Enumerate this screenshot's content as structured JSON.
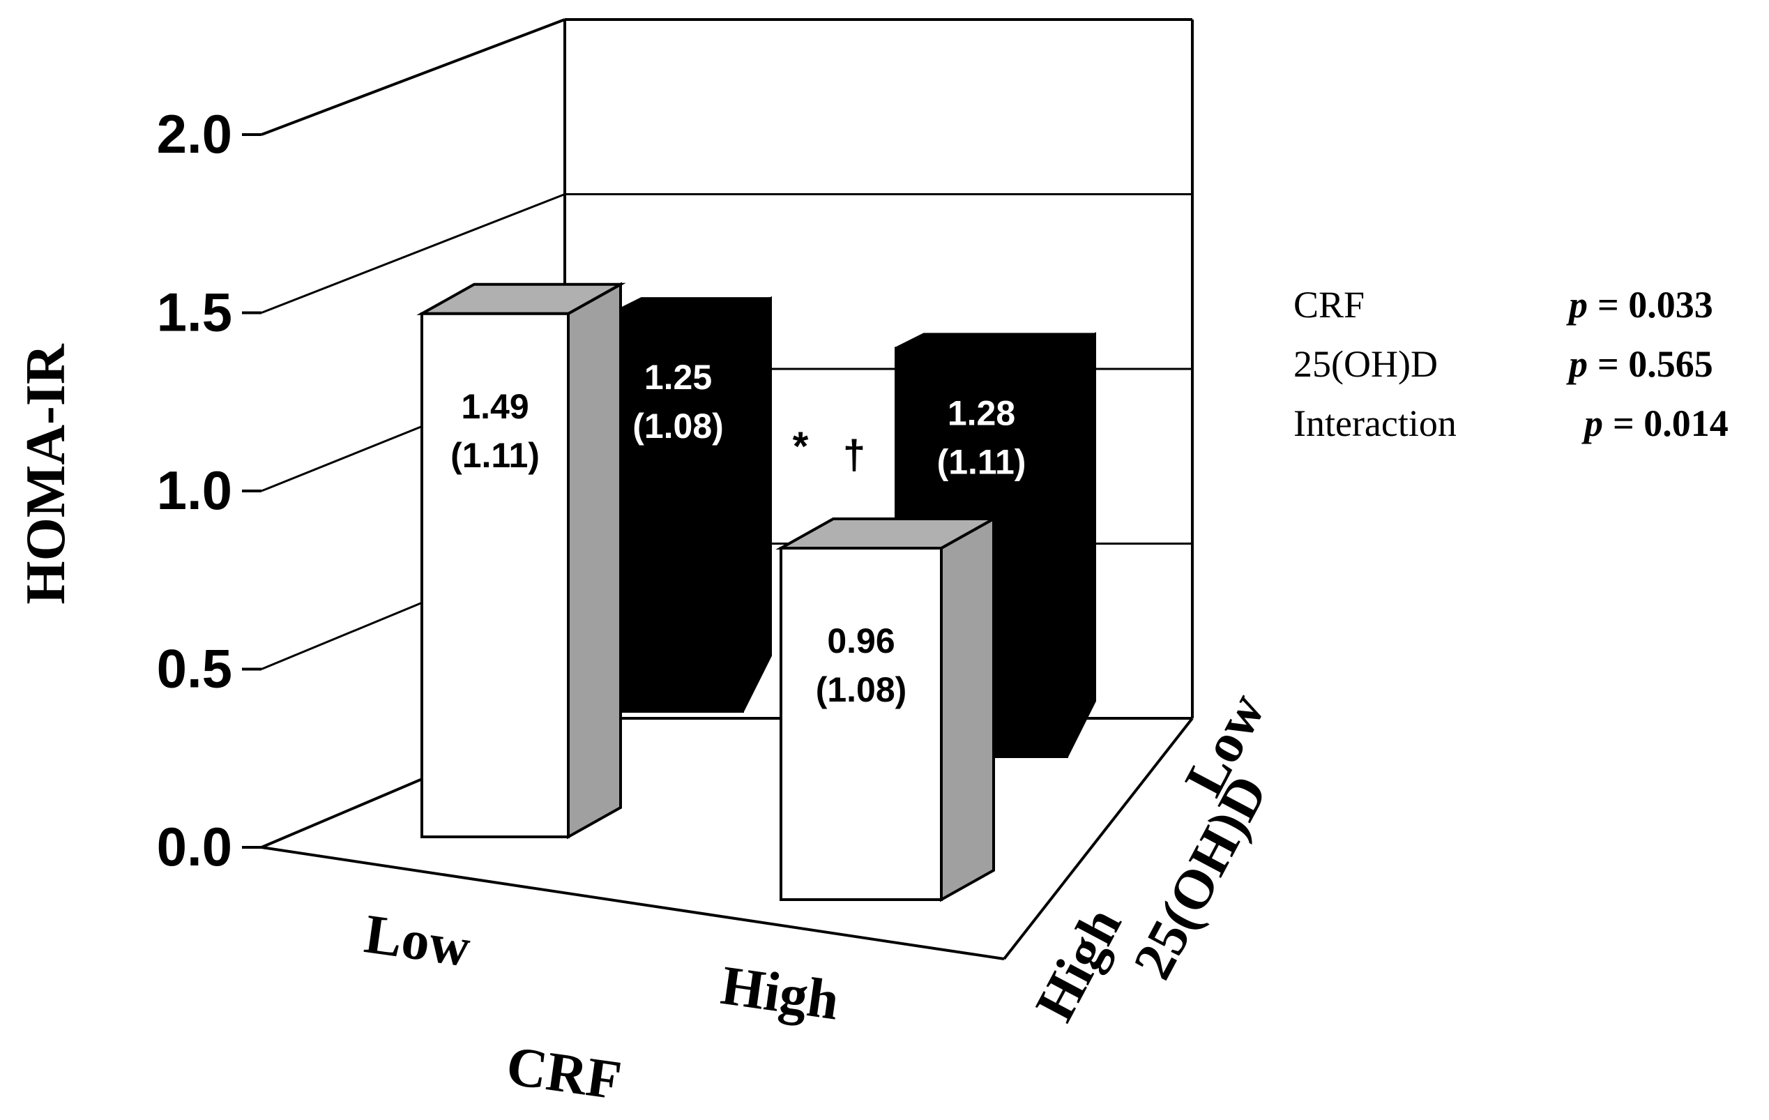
{
  "chart_data": {
    "type": "bar",
    "ylabel": "HOMA-IR",
    "xlabel": "CRF",
    "zlabel": "25(OH)D",
    "ylim": [
      0,
      2.0
    ],
    "yticks": [
      "0.0",
      "0.5",
      "1.0",
      "1.5",
      "2.0"
    ],
    "categories": [
      "Low",
      "High"
    ],
    "depth_categories": [
      "Low",
      "High"
    ],
    "grid": true,
    "series": [
      {
        "name": "High",
        "color": "#ffffff",
        "values": [
          1.49,
          0.96
        ],
        "labels": [
          "1.49",
          "0.96"
        ],
        "sublabels": [
          "(1.11)",
          "(1.08)"
        ]
      },
      {
        "name": "Low",
        "color": "#000000",
        "values": [
          1.25,
          1.28
        ],
        "labels": [
          "1.25",
          "1.28"
        ],
        "sublabels": [
          "(1.08)",
          "(1.11)"
        ]
      }
    ],
    "annotations": [
      {
        "text": "*",
        "category": "High",
        "series": "High"
      },
      {
        "text": "†",
        "category": "High",
        "series": "High"
      }
    ],
    "stats": [
      {
        "label": "CRF",
        "p_symbol": "p",
        "p_value": "= 0.033"
      },
      {
        "label": "25(OH)D",
        "p_symbol": "p",
        "p_value": "= 0.565"
      },
      {
        "label": "Interaction",
        "p_symbol": "p",
        "p_value": "= 0.014"
      }
    ]
  }
}
